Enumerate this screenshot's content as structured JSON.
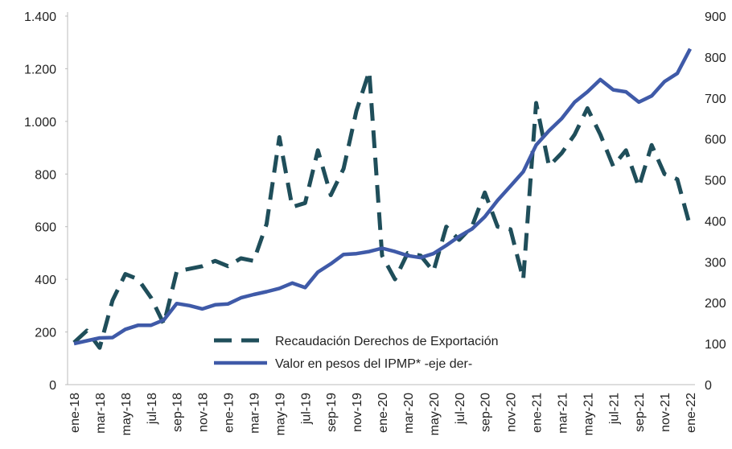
{
  "chart_data": {
    "type": "line",
    "categories": [
      "ene-18",
      null,
      "mar-18",
      null,
      "may-18",
      null,
      "jul-18",
      null,
      "sep-18",
      null,
      "nov-18",
      null,
      "ene-19",
      null,
      "mar-19",
      null,
      "may-19",
      null,
      "jul-19",
      null,
      "sep-19",
      null,
      "nov-19",
      null,
      "ene-20",
      null,
      "mar-20",
      null,
      "may-20",
      null,
      "jul-20",
      null,
      "sep-20",
      null,
      "nov-20",
      null,
      "ene-21",
      null,
      "mar-21",
      null,
      "may-21",
      null,
      "jul-21",
      null,
      "sep-21",
      null,
      "nov-21",
      null,
      "ene-22"
    ],
    "series": [
      {
        "name": "Recaudación Derechos de Exportación",
        "color": "#1f4e5a",
        "dashed": true,
        "values": [
          160,
          205,
          140,
          320,
          420,
          400,
          330,
          230,
          430,
          440,
          450,
          470,
          450,
          480,
          470,
          610,
          940,
          675,
          690,
          890,
          720,
          820,
          1040,
          1190,
          490,
          400,
          500,
          490,
          430,
          600,
          550,
          600,
          730,
          600,
          590,
          400,
          1070,
          830,
          880,
          950,
          1050,
          950,
          830,
          890,
          750,
          910,
          800,
          780,
          600
        ]
      },
      {
        "name": "Valor en pesos del IPMP* -eje der-",
        "color": "#3f5aa8",
        "axis": "y2",
        "values": [
          100,
          107,
          114,
          115,
          135,
          145,
          145,
          158,
          198,
          193,
          185,
          195,
          197,
          212,
          220,
          227,
          235,
          248,
          237,
          275,
          295,
          318,
          320,
          325,
          333,
          325,
          315,
          310,
          320,
          340,
          362,
          380,
          410,
          450,
          485,
          520,
          585,
          620,
          650,
          690,
          715,
          745,
          720,
          715,
          690,
          705,
          740,
          760,
          820
        ]
      }
    ],
    "ylim": [
      0,
      1400
    ],
    "yticks": [
      0,
      200,
      400,
      600,
      800,
      {
        "value": 1000,
        "label": "1.000"
      },
      {
        "value": 1200,
        "label": "1.200"
      },
      {
        "value": 1400,
        "label": "1.400"
      }
    ],
    "y2lim": [
      0,
      900
    ],
    "y2ticks": [
      0,
      100,
      200,
      300,
      400,
      500,
      600,
      700,
      800,
      900
    ],
    "legend": "bottom-center",
    "grid": false
  }
}
